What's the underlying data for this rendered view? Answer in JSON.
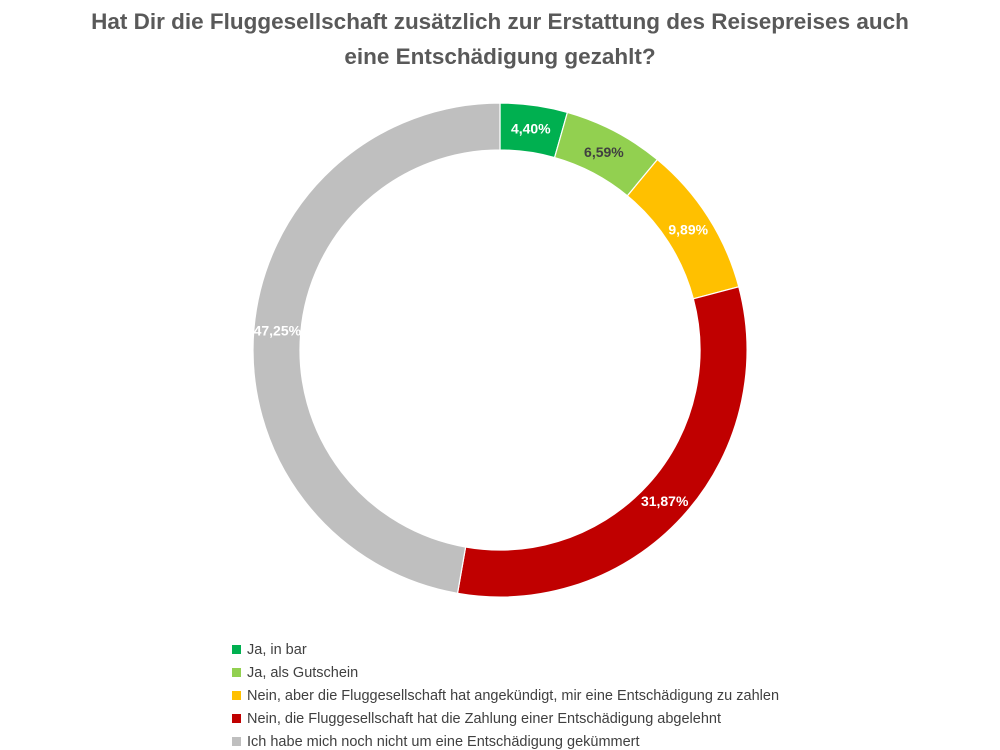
{
  "chart_data": {
    "type": "pie",
    "variant": "donut",
    "title_lines": [
      "Hat Dir die Fluggesellschaft zusätzlich zur Erstattung des Reisepreises auch",
      "eine Entschädigung gezahlt?"
    ],
    "slices": [
      {
        "label": "Ja, in bar",
        "value": 4.4,
        "display": "4,40%",
        "color": "#00B050",
        "label_color": "#ffffff"
      },
      {
        "label": "Ja, als Gutschein",
        "value": 6.59,
        "display": "6,59%",
        "color": "#92D050",
        "label_color": "#404040"
      },
      {
        "label": "Nein, aber die Fluggesellschaft hat angekündigt, mir eine Entschädigung zu zahlen",
        "value": 9.89,
        "display": "9,89%",
        "color": "#FFC000",
        "label_color": "#ffffff"
      },
      {
        "label": "Nein, die Fluggesellschaft hat die Zahlung einer Entschädigung abgelehnt",
        "value": 31.87,
        "display": "31,87%",
        "color": "#C00000",
        "label_color": "#ffffff"
      },
      {
        "label": "Ich habe mich noch nicht um eine Entschädigung gekümmert",
        "value": 47.25,
        "display": "47,25%",
        "color": "#BFBFBF",
        "label_color": "#ffffff"
      }
    ],
    "legend_position": "bottom-left",
    "start_angle": "12 o'clock",
    "direction": "clockwise"
  }
}
